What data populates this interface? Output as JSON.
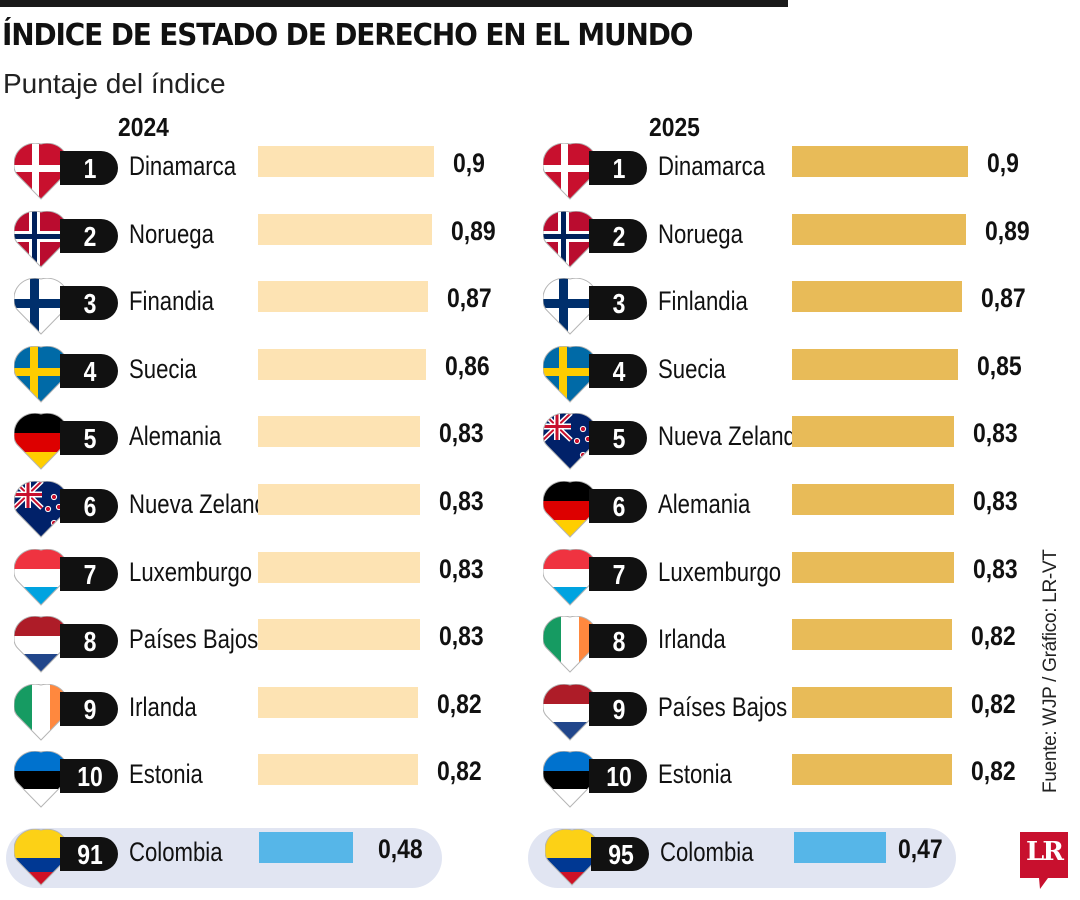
{
  "title": "ÍNDICE DE ESTADO DE DERECHO EN EL MUNDO",
  "subtitle": "Puntaje del índice",
  "source": "Fuente: WJP / Gráfico: LR-VT",
  "logo_text": "LR",
  "colors": {
    "bar_2024": "#fde3b3",
    "bar_2025": "#e8bb58",
    "bar_colombia": "#56b6e8",
    "rank_pill": "#111111",
    "highlight_box": "#e1e5f2",
    "logo": "#c8102e"
  },
  "chart_data": [
    {
      "type": "bar",
      "orientation": "horizontal",
      "title": "2024",
      "xlim": [
        0,
        1
      ],
      "rows": [
        {
          "rank": "1",
          "country": "Dinamarca",
          "value": 0.9,
          "label": "0,9",
          "flag": "denmark-flag-icon"
        },
        {
          "rank": "2",
          "country": "Noruega",
          "value": 0.89,
          "label": "0,89",
          "flag": "norway-flag-icon"
        },
        {
          "rank": "3",
          "country": "Finandia",
          "value": 0.87,
          "label": "0,87",
          "flag": "finland-flag-icon"
        },
        {
          "rank": "4",
          "country": "Suecia",
          "value": 0.86,
          "label": "0,86",
          "flag": "sweden-flag-icon"
        },
        {
          "rank": "5",
          "country": "Alemania",
          "value": 0.83,
          "label": "0,83",
          "flag": "germany-flag-icon"
        },
        {
          "rank": "6",
          "country": "Nueva Zelanda",
          "value": 0.83,
          "label": "0,83",
          "flag": "new-zealand-flag-icon"
        },
        {
          "rank": "7",
          "country": "Luxemburgo",
          "value": 0.83,
          "label": "0,83",
          "flag": "luxembourg-flag-icon"
        },
        {
          "rank": "8",
          "country": "Países Bajos",
          "value": 0.83,
          "label": "0,83",
          "flag": "netherlands-flag-icon"
        },
        {
          "rank": "9",
          "country": "Irlanda",
          "value": 0.82,
          "label": "0,82",
          "flag": "ireland-flag-icon"
        },
        {
          "rank": "10",
          "country": "Estonia",
          "value": 0.82,
          "label": "0,82",
          "flag": "estonia-flag-icon"
        }
      ],
      "highlight": {
        "rank": "91",
        "country": "Colombia",
        "value": 0.48,
        "label": "0,48",
        "flag": "colombia-flag-icon"
      }
    },
    {
      "type": "bar",
      "orientation": "horizontal",
      "title": "2025",
      "xlim": [
        0,
        1
      ],
      "rows": [
        {
          "rank": "1",
          "country": "Dinamarca",
          "value": 0.9,
          "label": "0,9",
          "flag": "denmark-flag-icon"
        },
        {
          "rank": "2",
          "country": "Noruega",
          "value": 0.89,
          "label": "0,89",
          "flag": "norway-flag-icon"
        },
        {
          "rank": "3",
          "country": "Finlandia",
          "value": 0.87,
          "label": "0,87",
          "flag": "finland-flag-icon"
        },
        {
          "rank": "4",
          "country": "Suecia",
          "value": 0.85,
          "label": "0,85",
          "flag": "sweden-flag-icon"
        },
        {
          "rank": "5",
          "country": "Nueva Zelanda",
          "value": 0.83,
          "label": "0,83",
          "flag": "new-zealand-flag-icon"
        },
        {
          "rank": "6",
          "country": "Alemania",
          "value": 0.83,
          "label": "0,83",
          "flag": "germany-flag-icon"
        },
        {
          "rank": "7",
          "country": "Luxemburgo",
          "value": 0.83,
          "label": "0,83",
          "flag": "luxembourg-flag-icon"
        },
        {
          "rank": "8",
          "country": "Irlanda",
          "value": 0.82,
          "label": "0,82",
          "flag": "ireland-flag-icon"
        },
        {
          "rank": "9",
          "country": "Países Bajos",
          "value": 0.82,
          "label": "0,82",
          "flag": "netherlands-flag-icon"
        },
        {
          "rank": "10",
          "country": "Estonia",
          "value": 0.82,
          "label": "0,82",
          "flag": "estonia-flag-icon"
        }
      ],
      "highlight": {
        "rank": "95",
        "country": "Colombia",
        "value": 0.47,
        "label": "0,47",
        "flag": "colombia-flag-icon"
      }
    }
  ]
}
